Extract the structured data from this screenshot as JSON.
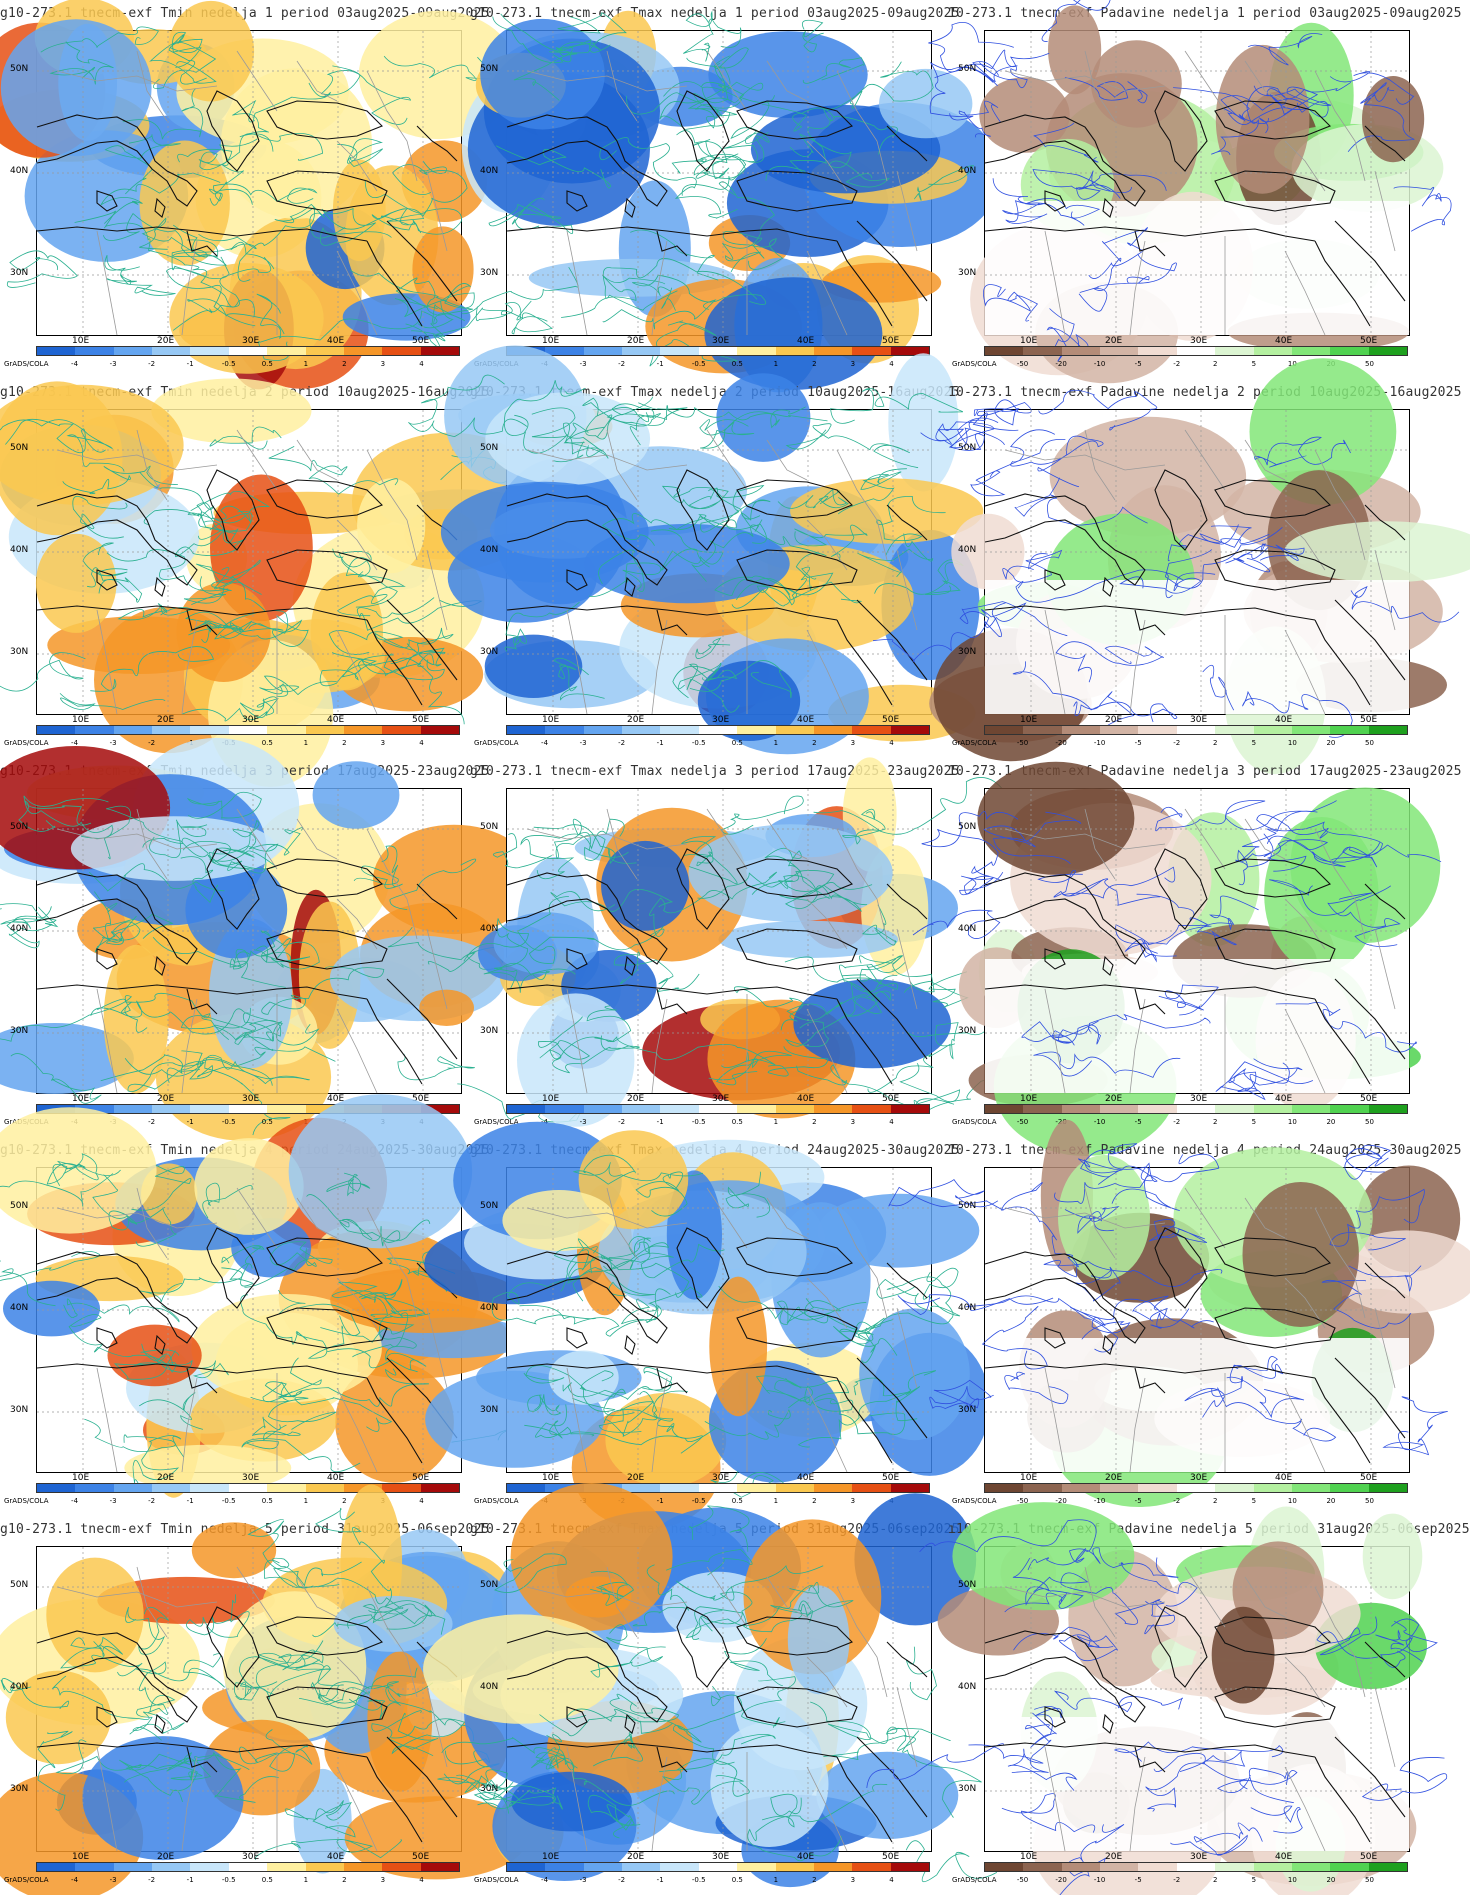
{
  "rows": [
    {
      "panels": [
        {
          "title": "g10-273.1 tnecm-exf Tmin nedelja 1 period 03aug2025-09aug2025",
          "kind": "temp"
        },
        {
          "title": "g10-273.1 tnecm-exf Tmax nedelja 1 period 03aug2025-09aug2025",
          "kind": "temp"
        },
        {
          "title": "10-273.1 tnecm-exf Padavine nedelja 1 period 03aug2025-09aug2025",
          "kind": "precip"
        }
      ]
    },
    {
      "panels": [
        {
          "title": "g10-273.1 tnecm-exf Tmin nedelja 2 period 10aug2025-16aug2025",
          "kind": "temp"
        },
        {
          "title": "g10-273.1 tnecm-exf Tmax nedelja 2 period 10aug2025-16aug2025",
          "kind": "temp"
        },
        {
          "title": "10-273.1 tnecm-exf Padavine nedelja 2 period 10aug2025-16aug2025",
          "kind": "precip"
        }
      ]
    },
    {
      "panels": [
        {
          "title": "g10-273.1 tnecm-exf Tmin nedelja 3 period 17aug2025-23aug2025",
          "kind": "temp"
        },
        {
          "title": "g10-273.1 tnecm-exf Tmax nedelja 3 period 17aug2025-23aug2025",
          "kind": "temp"
        },
        {
          "title": "10-273.1 tnecm-exf Padavine nedelja 3 period 17aug2025-23aug2025",
          "kind": "precip"
        }
      ]
    },
    {
      "panels": [
        {
          "title": "g10-273.1 tnecm-exf Tmin nedelja 4 period 24aug2025-30aug2025",
          "kind": "temp"
        },
        {
          "title": "g10-273.1 tnecm-exf Tmax nedelja 4 period 24aug2025-30aug2025",
          "kind": "temp"
        },
        {
          "title": "10-273.1 tnecm-exf Padavine nedelja 4 period 24aug2025-30aug2025",
          "kind": "precip"
        }
      ]
    },
    {
      "panels": [
        {
          "title": "g10-273.1 tnecm-exf Tmin nedelja 5 period 31aug2025-06sep2025",
          "kind": "temp"
        },
        {
          "title": "g10-273.1 tnecm-exf Tmax nedelja 5 period 31aug2025-06sep2025",
          "kind": "temp"
        },
        {
          "title": "ı10-273.1 tnecm-exf Padavine nedelja 5 period 31aug2025-06sep2025",
          "kind": "precip"
        }
      ]
    }
  ],
  "axes": {
    "lat_labels": [
      "50N",
      "40N",
      "30N"
    ],
    "lon_labels": [
      "10E",
      "20E",
      "30E",
      "40E",
      "50E"
    ]
  },
  "colorbars": {
    "source_label": "GrADS/COLA",
    "temp": {
      "ticks": [
        "-4",
        "-3",
        "-2",
        "-1",
        "-0.5",
        "0.5",
        "1",
        "2",
        "3",
        "4"
      ],
      "colors": [
        "#1e64d2",
        "#3c82e6",
        "#64a5f0",
        "#96c8f5",
        "#c8e6fa",
        "#ffffff",
        "#fff0a0",
        "#fac850",
        "#f59628",
        "#e65014",
        "#a50a0a"
      ]
    },
    "precip": {
      "ticks": [
        "-50",
        "-20",
        "-10",
        "-5",
        "-2",
        "2",
        "5",
        "10",
        "20",
        "50"
      ],
      "colors": [
        "#6e4632",
        "#8c6450",
        "#b48c78",
        "#d2b4a5",
        "#f0dcd2",
        "#ffffff",
        "#dcf5d2",
        "#b4f0a0",
        "#82e678",
        "#50d250",
        "#1ea01e"
      ]
    }
  }
}
